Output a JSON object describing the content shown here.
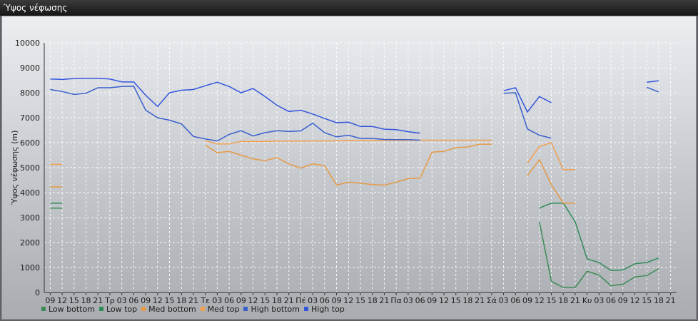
{
  "window": {
    "title": "Ύψος νέφωσης"
  },
  "chart_data": {
    "type": "line",
    "title": "",
    "ylabel": "Ύψος νέφωσης (m)",
    "xlabel": "",
    "ylim": [
      0,
      10000
    ],
    "yticks": [
      0,
      1000,
      2000,
      3000,
      4000,
      5000,
      6000,
      7000,
      8000,
      9000,
      10000
    ],
    "grid": true,
    "legend_position": "bottom-left",
    "xticks": [
      "09",
      "12",
      "15",
      "18",
      "21",
      "Τρ",
      "03",
      "06",
      "09",
      "12",
      "15",
      "18",
      "21",
      "Τε",
      "03",
      "06",
      "09",
      "12",
      "15",
      "18",
      "21",
      "Πέ",
      "03",
      "06",
      "09",
      "12",
      "15",
      "18",
      "21",
      "Πα",
      "03",
      "06",
      "09",
      "12",
      "15",
      "18",
      "21",
      "Σά",
      "03",
      "06",
      "09",
      "12",
      "15",
      "18",
      "21",
      "Κυ",
      "03",
      "06",
      "09",
      "12",
      "15",
      "18",
      "21"
    ],
    "series": [
      {
        "name": "Low bottom",
        "color": "#3d8b57",
        "points": [
          [
            0,
            3380
          ],
          [
            1,
            3380
          ],
          [
            41,
            2830
          ],
          [
            42,
            450
          ],
          [
            43,
            200
          ],
          [
            44,
            200
          ],
          [
            45,
            850
          ],
          [
            46,
            700
          ],
          [
            47,
            270
          ],
          [
            48,
            330
          ],
          [
            49,
            620
          ],
          [
            50,
            680
          ],
          [
            51,
            950
          ]
        ]
      },
      {
        "name": "Low top",
        "color": "#2e8b57",
        "points": [
          [
            0,
            3580
          ],
          [
            1,
            3580
          ],
          [
            41,
            3380
          ],
          [
            42,
            3580
          ],
          [
            43,
            3580
          ],
          [
            44,
            2830
          ],
          [
            45,
            1350
          ],
          [
            46,
            1200
          ],
          [
            47,
            880
          ],
          [
            48,
            900
          ],
          [
            49,
            1150
          ],
          [
            50,
            1200
          ],
          [
            51,
            1380
          ]
        ]
      },
      {
        "name": "Med bottom",
        "color": "#e69a45",
        "points": [
          [
            0,
            4230
          ],
          [
            1,
            4230
          ],
          [
            13,
            5900
          ],
          [
            14,
            5600
          ],
          [
            15,
            5650
          ],
          [
            16,
            5500
          ],
          [
            17,
            5350
          ],
          [
            18,
            5280
          ],
          [
            19,
            5400
          ],
          [
            20,
            5150
          ],
          [
            21,
            4980
          ],
          [
            22,
            5150
          ],
          [
            23,
            5080
          ],
          [
            24,
            4300
          ],
          [
            25,
            4420
          ],
          [
            26,
            4380
          ],
          [
            27,
            4320
          ],
          [
            28,
            4300
          ],
          [
            29,
            4420
          ],
          [
            30,
            4560
          ],
          [
            31,
            4580
          ],
          [
            32,
            5620
          ],
          [
            33,
            5650
          ],
          [
            34,
            5800
          ],
          [
            35,
            5830
          ],
          [
            36,
            5940
          ],
          [
            37,
            5940
          ],
          [
            40,
            4680
          ],
          [
            41,
            5320
          ],
          [
            42,
            4320
          ],
          [
            43,
            3580
          ],
          [
            44,
            3580
          ]
        ]
      },
      {
        "name": "Med top",
        "color": "#f0a050",
        "points": [
          [
            0,
            5130
          ],
          [
            1,
            5130
          ],
          [
            13,
            6080
          ],
          [
            14,
            5950
          ],
          [
            15,
            5950
          ],
          [
            16,
            6050
          ],
          [
            17,
            6050
          ],
          [
            18,
            6050
          ],
          [
            19,
            6060
          ],
          [
            20,
            6060
          ],
          [
            21,
            6060
          ],
          [
            22,
            6070
          ],
          [
            23,
            6070
          ],
          [
            24,
            6080
          ],
          [
            25,
            6080
          ],
          [
            26,
            6080
          ],
          [
            27,
            6090
          ],
          [
            28,
            6090
          ],
          [
            29,
            6090
          ],
          [
            30,
            6090
          ],
          [
            31,
            6100
          ],
          [
            32,
            6100
          ],
          [
            33,
            6100
          ],
          [
            34,
            6100
          ],
          [
            35,
            6100
          ],
          [
            36,
            6100
          ],
          [
            37,
            6100
          ],
          [
            40,
            5180
          ],
          [
            41,
            5850
          ],
          [
            42,
            6000
          ],
          [
            43,
            4920
          ],
          [
            44,
            4920
          ]
        ]
      },
      {
        "name": "High bottom",
        "color": "#3a5fcc",
        "points": [
          [
            0,
            8130
          ],
          [
            1,
            8050
          ],
          [
            2,
            7930
          ],
          [
            3,
            7980
          ],
          [
            4,
            8200
          ],
          [
            5,
            8200
          ],
          [
            6,
            8250
          ],
          [
            7,
            8260
          ],
          [
            8,
            7300
          ],
          [
            9,
            7000
          ],
          [
            10,
            6900
          ],
          [
            11,
            6750
          ],
          [
            12,
            6250
          ],
          [
            13,
            6150
          ],
          [
            14,
            6070
          ],
          [
            15,
            6330
          ],
          [
            16,
            6480
          ],
          [
            17,
            6270
          ],
          [
            18,
            6400
          ],
          [
            19,
            6480
          ],
          [
            20,
            6450
          ],
          [
            21,
            6470
          ],
          [
            22,
            6780
          ],
          [
            23,
            6400
          ],
          [
            24,
            6230
          ],
          [
            25,
            6300
          ],
          [
            26,
            6170
          ],
          [
            27,
            6170
          ],
          [
            28,
            6130
          ],
          [
            29,
            6120
          ],
          [
            30,
            6120
          ],
          [
            31,
            6100
          ],
          [
            38,
            7980
          ],
          [
            39,
            8000
          ],
          [
            40,
            6550
          ],
          [
            41,
            6300
          ],
          [
            42,
            6180
          ],
          [
            50,
            8220
          ],
          [
            51,
            8030
          ]
        ]
      },
      {
        "name": "High top",
        "color": "#3355dd",
        "points": [
          [
            0,
            8550
          ],
          [
            1,
            8530
          ],
          [
            2,
            8570
          ],
          [
            3,
            8580
          ],
          [
            4,
            8580
          ],
          [
            5,
            8550
          ],
          [
            6,
            8430
          ],
          [
            7,
            8430
          ],
          [
            8,
            7900
          ],
          [
            9,
            7450
          ],
          [
            10,
            8000
          ],
          [
            11,
            8100
          ],
          [
            12,
            8130
          ],
          [
            13,
            8280
          ],
          [
            14,
            8420
          ],
          [
            15,
            8250
          ],
          [
            16,
            8000
          ],
          [
            17,
            8170
          ],
          [
            18,
            7850
          ],
          [
            19,
            7500
          ],
          [
            20,
            7250
          ],
          [
            21,
            7300
          ],
          [
            22,
            7150
          ],
          [
            23,
            6970
          ],
          [
            24,
            6800
          ],
          [
            25,
            6820
          ],
          [
            26,
            6650
          ],
          [
            27,
            6650
          ],
          [
            28,
            6540
          ],
          [
            29,
            6520
          ],
          [
            30,
            6440
          ],
          [
            31,
            6380
          ],
          [
            38,
            8080
          ],
          [
            39,
            8200
          ],
          [
            40,
            7230
          ],
          [
            41,
            7850
          ],
          [
            42,
            7600
          ],
          [
            50,
            8420
          ],
          [
            51,
            8480
          ]
        ]
      }
    ]
  }
}
